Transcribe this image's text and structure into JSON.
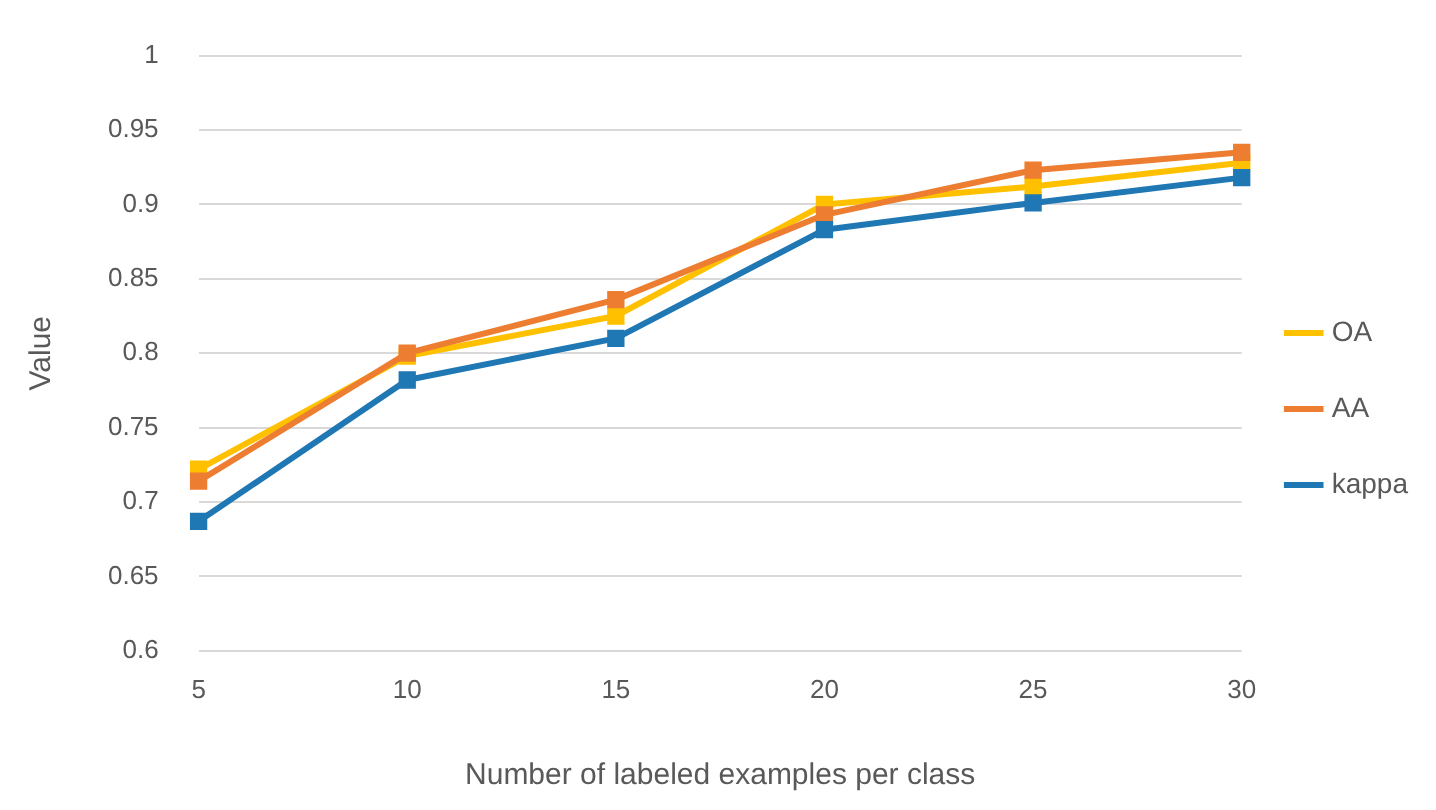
{
  "chart_data": {
    "type": "line",
    "xlabel": "Number of labeled examples per class",
    "ylabel": "Value",
    "categories": [
      "5",
      "10",
      "15",
      "20",
      "25",
      "30"
    ],
    "series": [
      {
        "name": "OA",
        "color": "#ffc000",
        "values": [
          0.722,
          0.798,
          0.825,
          0.9,
          0.912,
          0.928
        ]
      },
      {
        "name": "AA",
        "color": "#ed7d31",
        "values": [
          0.714,
          0.8,
          0.836,
          0.893,
          0.923,
          0.935
        ]
      },
      {
        "name": "kappa",
        "color": "#1f77b4",
        "values": [
          0.687,
          0.782,
          0.81,
          0.883,
          0.901,
          0.918
        ]
      }
    ],
    "ylim": [
      0.6,
      1
    ],
    "yticks": [
      0.6,
      0.65,
      0.7,
      0.75,
      0.8,
      0.85,
      0.9,
      0.95,
      1
    ],
    "grid": "y",
    "legend": "right",
    "marker": "square",
    "line_style": "solid"
  }
}
